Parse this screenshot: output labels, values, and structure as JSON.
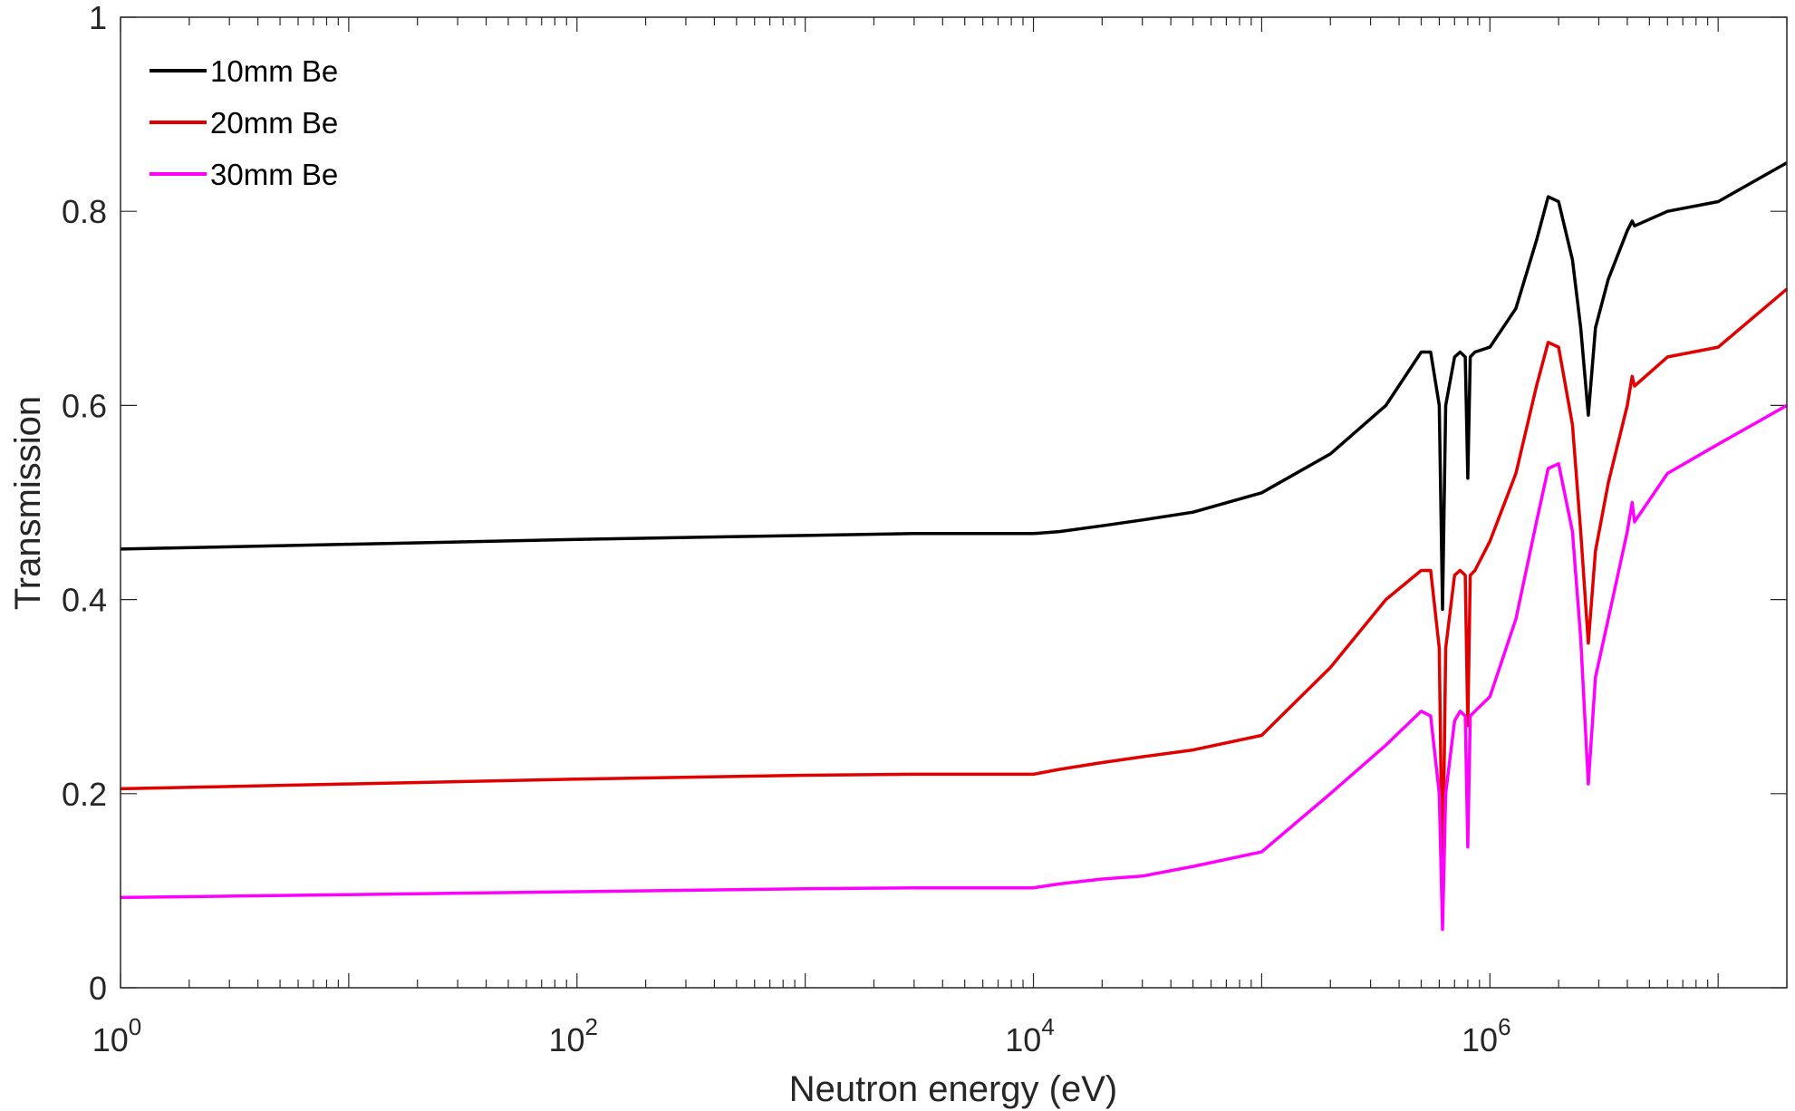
{
  "chart_data": {
    "type": "line",
    "title": "",
    "xlabel": "Neutron energy (eV)",
    "ylabel": "Transmission",
    "x_scale": "log",
    "xlim": [
      1,
      20000000
    ],
    "ylim": [
      0,
      1
    ],
    "grid": false,
    "legend_position": "top-left",
    "x_ticks": [
      {
        "base": "10",
        "exp": "0",
        "value": 1
      },
      {
        "base": "10",
        "exp": "2",
        "value": 100
      },
      {
        "base": "10",
        "exp": "4",
        "value": 10000
      },
      {
        "base": "10",
        "exp": "6",
        "value": 1000000
      }
    ],
    "y_ticks": [
      {
        "label": "0",
        "value": 0
      },
      {
        "label": "0.2",
        "value": 0.2
      },
      {
        "label": "0.4",
        "value": 0.4
      },
      {
        "label": "0.6",
        "value": 0.6
      },
      {
        "label": "0.8",
        "value": 0.8
      },
      {
        "label": "1",
        "value": 1
      }
    ],
    "series": [
      {
        "name": "10mm Be",
        "color": "#000000",
        "x": [
          1,
          10,
          100,
          1000,
          3000,
          10000,
          13000,
          20000,
          30000,
          50000,
          100000,
          200000,
          350000,
          500000,
          550000,
          600000,
          620000,
          640000,
          700000,
          740000,
          780000,
          800000,
          820000,
          860000,
          1000000,
          1300000,
          1600000,
          1800000,
          2000000,
          2300000,
          2500000,
          2700000,
          2900000,
          3300000,
          4000000,
          4200000,
          4300000,
          6000000,
          10000000,
          20000000
        ],
        "y": [
          0.452,
          0.457,
          0.462,
          0.466,
          0.468,
          0.468,
          0.47,
          0.476,
          0.482,
          0.49,
          0.51,
          0.55,
          0.6,
          0.655,
          0.655,
          0.6,
          0.39,
          0.6,
          0.65,
          0.655,
          0.65,
          0.525,
          0.65,
          0.655,
          0.66,
          0.7,
          0.77,
          0.815,
          0.81,
          0.75,
          0.68,
          0.59,
          0.68,
          0.73,
          0.78,
          0.79,
          0.785,
          0.8,
          0.81,
          0.85
        ]
      },
      {
        "name": "20mm Be",
        "color": "#e00000",
        "x": [
          1,
          10,
          100,
          1000,
          3000,
          10000,
          13000,
          20000,
          30000,
          50000,
          100000,
          200000,
          350000,
          500000,
          550000,
          600000,
          620000,
          640000,
          700000,
          740000,
          780000,
          800000,
          820000,
          860000,
          1000000,
          1300000,
          1600000,
          1800000,
          2000000,
          2300000,
          2500000,
          2700000,
          2900000,
          3300000,
          4000000,
          4200000,
          4300000,
          6000000,
          10000000,
          20000000
        ],
        "y": [
          0.205,
          0.21,
          0.215,
          0.219,
          0.22,
          0.22,
          0.225,
          0.232,
          0.238,
          0.245,
          0.26,
          0.33,
          0.4,
          0.43,
          0.43,
          0.35,
          0.1,
          0.35,
          0.425,
          0.43,
          0.425,
          0.27,
          0.425,
          0.43,
          0.46,
          0.53,
          0.62,
          0.665,
          0.66,
          0.58,
          0.47,
          0.355,
          0.45,
          0.52,
          0.6,
          0.63,
          0.62,
          0.65,
          0.66,
          0.72
        ]
      },
      {
        "name": "30mm Be",
        "color": "#ff00ff",
        "x": [
          1,
          10,
          100,
          1000,
          3000,
          10000,
          13000,
          20000,
          30000,
          50000,
          100000,
          200000,
          350000,
          500000,
          550000,
          600000,
          620000,
          640000,
          700000,
          740000,
          780000,
          800000,
          820000,
          860000,
          1000000,
          1300000,
          1600000,
          1800000,
          2000000,
          2300000,
          2500000,
          2700000,
          2900000,
          3300000,
          4000000,
          4200000,
          4300000,
          6000000,
          10000000,
          20000000
        ],
        "y": [
          0.093,
          0.096,
          0.099,
          0.102,
          0.103,
          0.103,
          0.107,
          0.112,
          0.115,
          0.125,
          0.14,
          0.2,
          0.25,
          0.285,
          0.28,
          0.2,
          0.06,
          0.2,
          0.275,
          0.285,
          0.28,
          0.145,
          0.28,
          0.285,
          0.3,
          0.38,
          0.48,
          0.535,
          0.54,
          0.47,
          0.36,
          0.21,
          0.32,
          0.38,
          0.47,
          0.5,
          0.48,
          0.53,
          0.56,
          0.6
        ]
      }
    ]
  }
}
